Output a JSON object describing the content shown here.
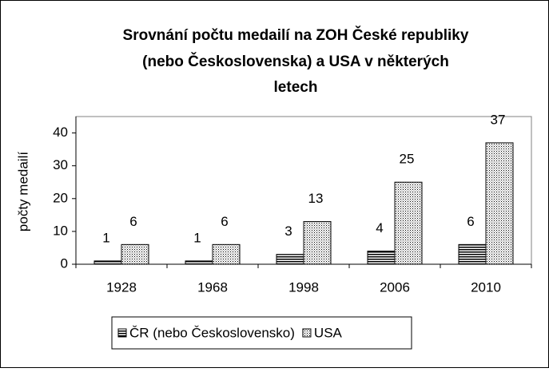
{
  "chart_data": {
    "type": "bar",
    "title": [
      "Srovnání počtu medailí na ZOH České republiky",
      "(nebo Československa) a USA v některých",
      "letech"
    ],
    "y_label": "počty medailí",
    "categories": [
      "1928",
      "1968",
      "1998",
      "2006",
      "2010"
    ],
    "series": [
      {
        "name": "ČR (nebo Československo)",
        "color": "#000000",
        "pattern": "horizontal",
        "values": [
          1,
          1,
          3,
          4,
          6
        ]
      },
      {
        "name": "USA",
        "color": "#000000",
        "pattern": "dots",
        "values": [
          6,
          6,
          13,
          25,
          37
        ]
      }
    ],
    "ylim": [
      0,
      45
    ],
    "yticks": [
      0,
      10,
      20,
      30,
      40
    ],
    "grid": false,
    "legend": "bottom"
  }
}
